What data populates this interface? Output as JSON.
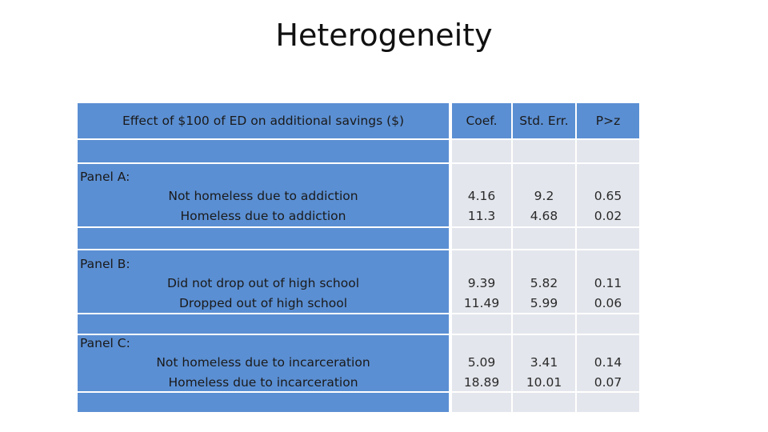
{
  "title": "Heterogeneity",
  "table": {
    "header": {
      "label": "Effect of $100 of ED on additional savings ($)",
      "coef": "Coef.",
      "se": "Std. Err.",
      "p": "P>z"
    },
    "panels": [
      {
        "label": "Panel A:",
        "rows": [
          {
            "label": "Not homeless due to addiction",
            "coef": "4.16",
            "se": "9.2",
            "p": "0.65"
          },
          {
            "label": "Homeless due to addiction",
            "coef": "11.3",
            "se": "4.68",
            "p": "0.02"
          }
        ]
      },
      {
        "label": "Panel B:",
        "rows": [
          {
            "label": "Did not drop out of high school",
            "coef": "9.39",
            "se": "5.82",
            "p": "0.11"
          },
          {
            "label": "Dropped out of high school",
            "coef": "11.49",
            "se": "5.99",
            "p": "0.06"
          }
        ]
      },
      {
        "label": "Panel C:",
        "rows": [
          {
            "label": "Not homeless due to incarceration",
            "coef": "5.09",
            "se": "3.41",
            "p": "0.14"
          },
          {
            "label": "Homeless due to incarceration",
            "coef": "18.89",
            "se": "10.01",
            "p": "0.07"
          }
        ]
      }
    ]
  },
  "colors": {
    "label_fill": "#5b8fd3",
    "value_fill": "#e3e6ec"
  }
}
